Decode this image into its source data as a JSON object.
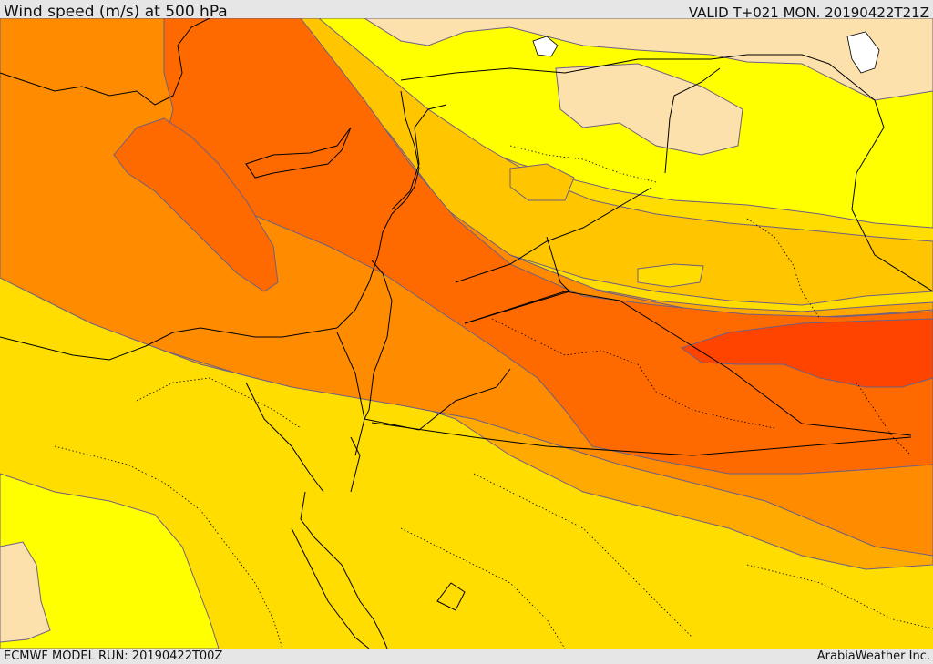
{
  "header": {
    "title": "Wind speed (m/s) at 500 hPa",
    "valid_time": "VALID T+021 MON. 20190422T21Z"
  },
  "footer": {
    "model_run": "ECMWF MODEL RUN: 20190422T00Z",
    "credit": "ArabiaWeather Inc."
  },
  "map": {
    "field": "wind speed",
    "level": "500 hPa",
    "colors": {
      "land_light": "#fce1ad",
      "yellow": "#ffff00",
      "gold": "#ffdd00",
      "amber": "#ffc600",
      "orange_light": "#ffaa00",
      "orange": "#ff8c00",
      "orange_dark": "#ff6a00",
      "red_orange": "#ff4400",
      "contour": "#6e5f80",
      "border": "#000000"
    }
  }
}
